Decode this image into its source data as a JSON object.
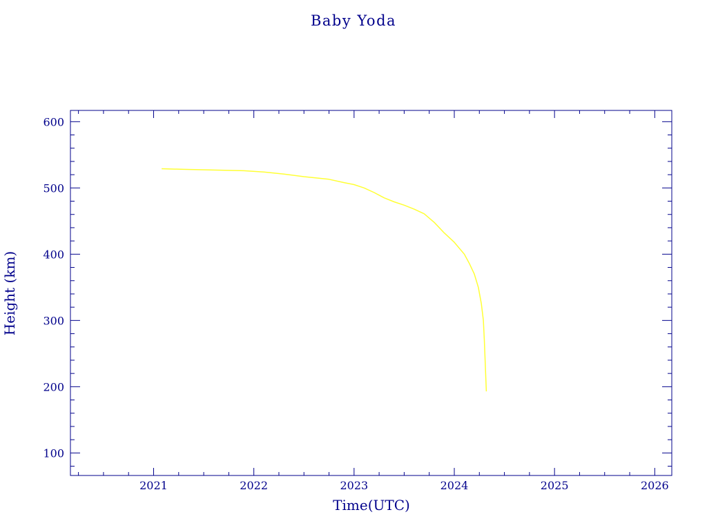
{
  "chart_data": {
    "type": "line",
    "title": "Baby Yoda",
    "xlabel": "Time(UTC)",
    "ylabel": "Height (km)",
    "xlim": [
      2020.17,
      2026.17
    ],
    "ylim": [
      66,
      617
    ],
    "x_ticks": [
      {
        "value": 2021,
        "label": "2021"
      },
      {
        "value": 2022,
        "label": "2022"
      },
      {
        "value": 2023,
        "label": "2023"
      },
      {
        "value": 2024,
        "label": "2024"
      },
      {
        "value": 2025,
        "label": "2025"
      },
      {
        "value": 2026,
        "label": "2026"
      }
    ],
    "y_ticks": [
      {
        "value": 100,
        "label": "100"
      },
      {
        "value": 200,
        "label": "200"
      },
      {
        "value": 300,
        "label": "300"
      },
      {
        "value": 400,
        "label": "400"
      },
      {
        "value": 500,
        "label": "500"
      },
      {
        "value": 600,
        "label": "600"
      }
    ],
    "grid": false,
    "colors": {
      "axis": "#00008b",
      "text": "#00008b",
      "line": "#ffff33",
      "background": "#ffffff"
    },
    "series": [
      {
        "x": [
          2021.08,
          2021.3,
          2021.6,
          2021.9,
          2022.1,
          2022.3,
          2022.5,
          2022.75,
          2022.9,
          2023.0,
          2023.1,
          2023.2,
          2023.3,
          2023.4,
          2023.5,
          2023.6,
          2023.7,
          2023.8,
          2023.9,
          2024.0,
          2024.1,
          2024.15,
          2024.2,
          2024.24,
          2024.27,
          2024.29,
          2024.3,
          2024.31,
          2024.32
        ],
        "y": [
          529,
          528,
          527,
          526,
          524,
          521,
          517,
          513,
          508,
          505,
          500,
          493,
          485,
          479,
          474,
          468,
          461,
          448,
          432,
          418,
          400,
          386,
          370,
          350,
          325,
          300,
          270,
          230,
          193
        ]
      }
    ]
  }
}
